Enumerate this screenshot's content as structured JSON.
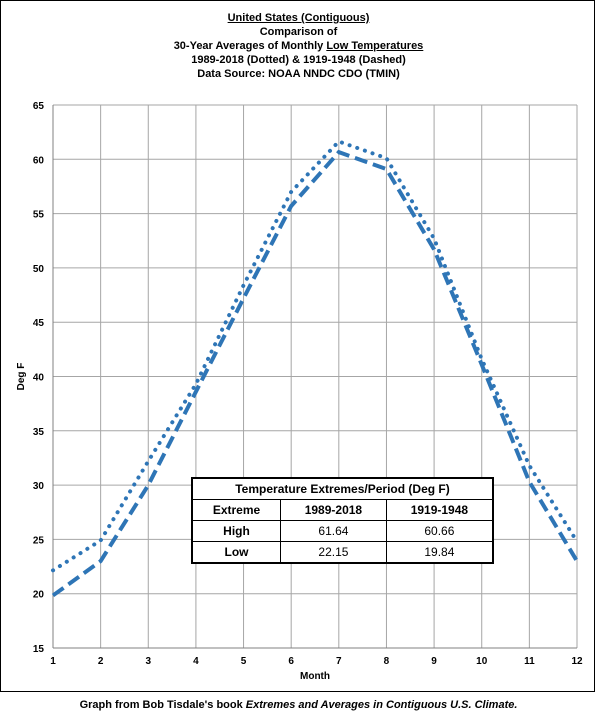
{
  "title": {
    "line1": "United States (Contiguous)",
    "line2": "Comparison of",
    "line3_pre": "30-Year Averages of Monthly ",
    "line3_u": "Low Temperatures",
    "line4": "1989-2018 (Dotted) & 1919-1948 (Dashed)",
    "line5": "Data Source: NOAA NNDC CDO (TMIN)"
  },
  "caption": {
    "pre": "Graph from Bob Tisdale's book ",
    "italic": "Extremes and Averages in Contiguous U.S. Climate."
  },
  "table": {
    "title": "Temperature Extremes/Period (Deg F)",
    "headers": [
      "Extreme",
      "1989-2018",
      "1919-1948"
    ],
    "rows": [
      {
        "label": "High",
        "values": [
          "61.64",
          "60.66"
        ]
      },
      {
        "label": "Low",
        "values": [
          "22.15",
          "19.84"
        ]
      }
    ]
  },
  "chart_data": {
    "type": "line",
    "title": "United States (Contiguous) Comparison of 30-Year Averages of Monthly Low Temperatures 1989-2018 (Dotted) & 1919-1948 (Dashed)",
    "xlabel": "Month",
    "ylabel": "Deg F",
    "x": [
      1,
      2,
      3,
      4,
      5,
      6,
      7,
      8,
      9,
      10,
      11,
      12
    ],
    "xlim": [
      1,
      12
    ],
    "ylim": [
      15,
      65
    ],
    "yticks": [
      15,
      20,
      25,
      30,
      35,
      40,
      45,
      50,
      55,
      60,
      65
    ],
    "grid": true,
    "series": [
      {
        "name": "1989-2018",
        "style": "dotted",
        "color": "#2E75B6",
        "values": [
          22.15,
          24.9,
          32.2,
          39.3,
          48.4,
          57.0,
          61.64,
          60.1,
          52.7,
          41.6,
          31.8,
          24.8
        ]
      },
      {
        "name": "1919-1948",
        "style": "dashed",
        "color": "#2E75B6",
        "values": [
          19.84,
          23.0,
          30.0,
          38.6,
          47.2,
          55.7,
          60.66,
          59.1,
          51.7,
          41.1,
          30.3,
          23.0
        ]
      }
    ]
  }
}
